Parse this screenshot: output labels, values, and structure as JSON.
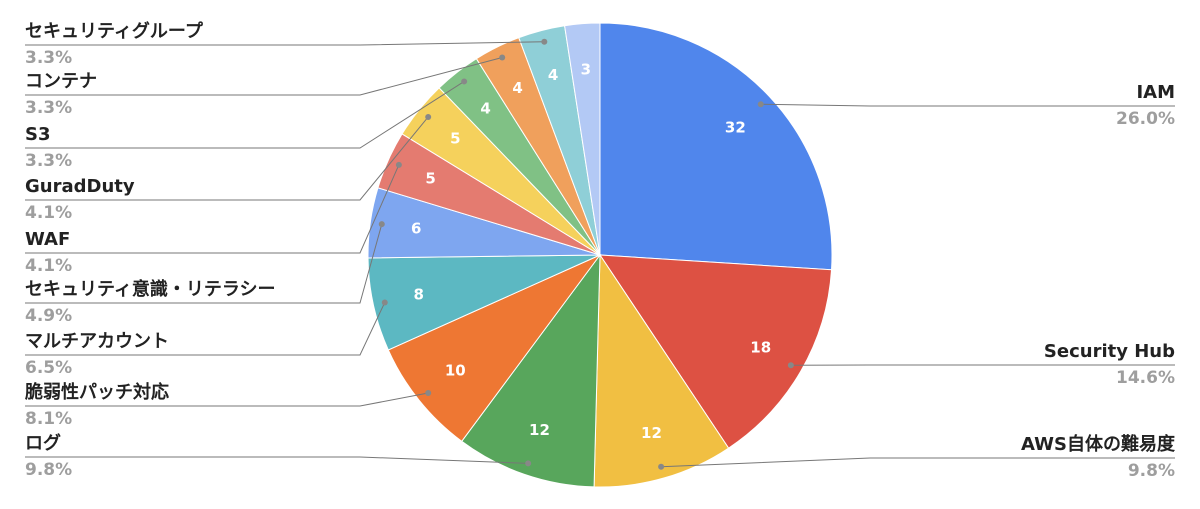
{
  "chart_data": {
    "type": "pie",
    "categories": [
      "IAM",
      "Security Hub",
      "AWS自体の難易度",
      "ログ",
      "脆弱性パッチ対応",
      "マルチアカウント",
      "セキュリティ意識・リテラシー",
      "WAF",
      "GuradDuty",
      "S3",
      "コンテナ",
      "セキュリティグループ",
      null
    ],
    "values": [
      32,
      18,
      12,
      12,
      10,
      8,
      6,
      5,
      5,
      4,
      4,
      4,
      3
    ],
    "percent_labels": [
      "26.0%",
      "14.6%",
      "9.8%",
      "9.8%",
      "8.1%",
      "6.5%",
      "4.9%",
      "4.1%",
      "4.1%",
      "3.3%",
      "3.3%",
      "3.3%",
      null
    ],
    "colors": [
      "#5086ec",
      "#dd5143",
      "#f1bf42",
      "#58a65c",
      "#ee7733",
      "#5cb8c2",
      "#7ea6f0",
      "#e47b70",
      "#f5d15c",
      "#80c185",
      "#f0a05c",
      "#8fcfd7",
      "#b3c9f5"
    ]
  }
}
